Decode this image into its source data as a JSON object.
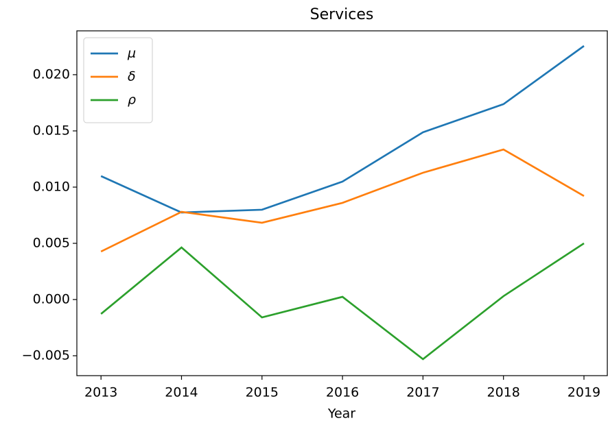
{
  "chart_data": {
    "type": "line",
    "title": "Services",
    "x_label": "Year",
    "x": [
      2013,
      2014,
      2015,
      2016,
      2017,
      2018,
      2019
    ],
    "series": [
      {
        "name": "μ",
        "color": "#1f77b4",
        "values": [
          0.01098,
          0.00774,
          0.00799,
          0.01049,
          0.01488,
          0.01738,
          0.02256
        ]
      },
      {
        "name": "δ",
        "color": "#ff7f0e",
        "values": [
          0.00427,
          0.0078,
          0.00683,
          0.0086,
          0.01128,
          0.01335,
          0.00921
        ]
      },
      {
        "name": "ρ",
        "color": "#2ca02c",
        "values": [
          -0.00128,
          0.00463,
          -0.00159,
          0.00024,
          -0.0053,
          0.0003,
          0.005
        ]
      }
    ],
    "xlim": [
      2012.7,
      2019.29
    ],
    "xticks": [
      2013,
      2014,
      2015,
      2016,
      2017,
      2018,
      2019
    ],
    "ylim": [
      -0.00677,
      0.0239
    ],
    "yticks": [
      {
        "value": -0.005,
        "label": "−0.005"
      },
      {
        "value": 0,
        "label": "0.000"
      },
      {
        "value": 0.005,
        "label": "0.005"
      },
      {
        "value": 0.01,
        "label": "0.010"
      },
      {
        "value": 0.015,
        "label": "0.015"
      },
      {
        "value": 0.02,
        "label": "0.020"
      }
    ],
    "legend": "upper left",
    "grid": false
  }
}
